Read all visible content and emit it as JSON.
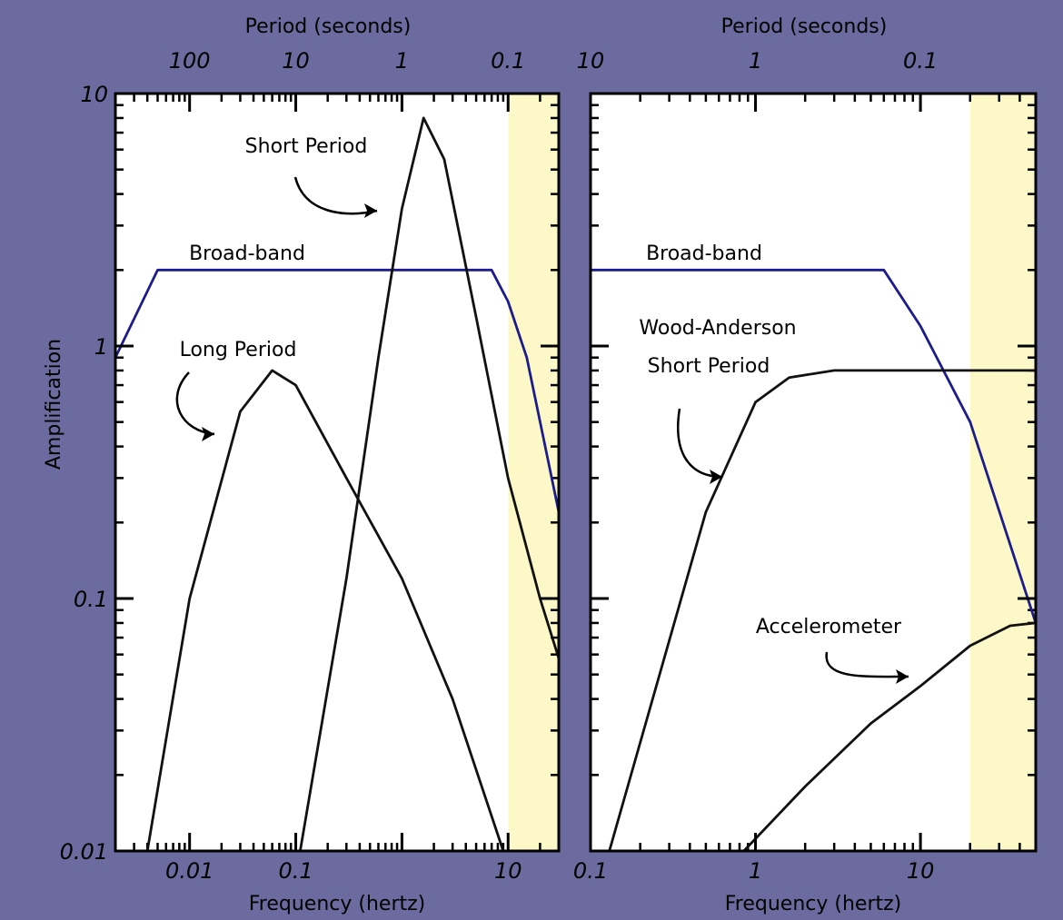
{
  "colors": {
    "frame": "#6b6ba0",
    "plot_bg": "#ffffff",
    "shade": "#fdf8c8",
    "broadband": "#1c1c8c",
    "curve": "#111111"
  },
  "ylabel": "Amplification",
  "chart_data": [
    {
      "type": "line",
      "id": "left",
      "xscale": "log",
      "yscale": "log",
      "xlim": [
        0.002,
        30
      ],
      "ylim": [
        0.01,
        10
      ],
      "xlabel": "Frequency (hertz)",
      "x2label": "Period (seconds)",
      "ylabel": "Amplification",
      "x_ticks": [
        {
          "value": 0.01,
          "label": "0.01"
        },
        {
          "value": 0.1,
          "label": "0.1"
        },
        {
          "value": 1,
          "label": ""
        },
        {
          "value": 10,
          "label": "10"
        }
      ],
      "x2_ticks": [
        {
          "value": 100,
          "label": "100"
        },
        {
          "value": 10,
          "label": "10"
        },
        {
          "value": 1,
          "label": "1"
        },
        {
          "value": 0.1,
          "label": "0.1"
        }
      ],
      "y_ticks": [
        {
          "value": 0.01,
          "label": "0.01"
        },
        {
          "value": 0.1,
          "label": "0.1"
        },
        {
          "value": 1,
          "label": "1"
        },
        {
          "value": 10,
          "label": "10"
        }
      ],
      "shaded_x": [
        10,
        30
      ],
      "series": [
        {
          "name": "Broad-band",
          "color": "#1c1c8c",
          "x": [
            0.002,
            0.005,
            2,
            7,
            10,
            15,
            30
          ],
          "y": [
            0.9,
            2,
            2,
            2,
            1.5,
            0.9,
            0.22
          ]
        },
        {
          "name": "Short Period",
          "color": "#111111",
          "x": [
            0.11,
            0.3,
            0.6,
            1.0,
            1.6,
            2.5,
            5,
            10,
            20,
            30
          ],
          "y": [
            0.01,
            0.12,
            0.9,
            3.5,
            8,
            5.5,
            1.3,
            0.3,
            0.1,
            0.058
          ]
        },
        {
          "name": "Long Period",
          "color": "#111111",
          "x": [
            0.004,
            0.01,
            0.03,
            0.06,
            0.1,
            0.3,
            1,
            3,
            9
          ],
          "y": [
            0.01,
            0.1,
            0.55,
            0.8,
            0.7,
            0.3,
            0.12,
            0.04,
            0.01
          ]
        }
      ],
      "annotations": [
        {
          "text": "Short Period",
          "series": "Short Period"
        },
        {
          "text": "Broad-band",
          "series": "Broad-band"
        },
        {
          "text": "Long Period",
          "series": "Long Period"
        }
      ]
    },
    {
      "type": "line",
      "id": "right",
      "xscale": "log",
      "yscale": "log",
      "xlim": [
        0.1,
        50
      ],
      "ylim": [
        0.01,
        10
      ],
      "xlabel": "Frequency (hertz)",
      "x2label": "Period (seconds)",
      "x_ticks": [
        {
          "value": 0.1,
          "label": "0.1"
        },
        {
          "value": 1,
          "label": "1"
        },
        {
          "value": 10,
          "label": "10"
        }
      ],
      "x2_ticks": [
        {
          "value": 10,
          "label": "10"
        },
        {
          "value": 1,
          "label": "1"
        },
        {
          "value": 0.1,
          "label": "0.1"
        }
      ],
      "y_ticks": [
        {
          "value": 0.01,
          "label": ""
        },
        {
          "value": 0.1,
          "label": ""
        },
        {
          "value": 1,
          "label": ""
        },
        {
          "value": 10,
          "label": ""
        }
      ],
      "shaded_x": [
        20,
        50
      ],
      "series": [
        {
          "name": "Broad-band",
          "color": "#1c1c8c",
          "x": [
            0.1,
            6,
            10,
            20,
            50
          ],
          "y": [
            2,
            2,
            1.2,
            0.5,
            0.08
          ]
        },
        {
          "name": "Wood-Anderson Short Period",
          "color": "#111111",
          "x": [
            0.13,
            0.5,
            1.0,
            1.6,
            3,
            10,
            50
          ],
          "y": [
            0.01,
            0.22,
            0.6,
            0.75,
            0.8,
            0.8,
            0.8
          ]
        },
        {
          "name": "Accelerometer",
          "color": "#111111",
          "x": [
            0.85,
            2,
            5,
            10,
            20,
            35,
            50
          ],
          "y": [
            0.01,
            0.018,
            0.032,
            0.045,
            0.065,
            0.078,
            0.08
          ]
        }
      ],
      "annotations": [
        {
          "text": "Broad-band",
          "series": "Broad-band"
        },
        {
          "text": "Wood-Anderson",
          "series": "Wood-Anderson Short Period"
        },
        {
          "text": "Short Period",
          "series": "Wood-Anderson Short Period"
        },
        {
          "text": "Accelerometer",
          "series": "Accelerometer"
        }
      ]
    }
  ]
}
